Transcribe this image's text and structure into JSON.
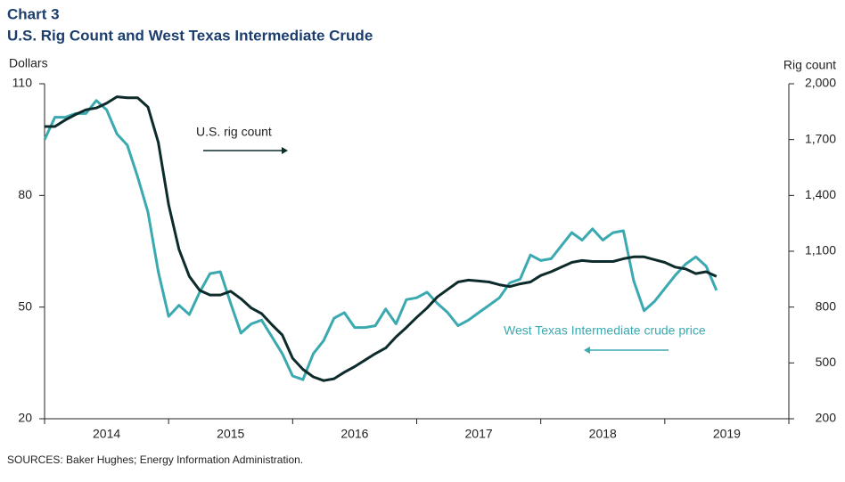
{
  "chart_data": {
    "type": "line",
    "title": "Chart 3",
    "subtitle": "U.S. Rig Count and West Texas Intermediate Crude",
    "y_label": "Dollars",
    "y2_label": "Rig count",
    "source": "SOURCES: Baker Hughes; Energy Information  Administration.",
    "categories": [
      "2014",
      null,
      null,
      null,
      null,
      null,
      null,
      null,
      null,
      null,
      null,
      null,
      "2015",
      null,
      null,
      null,
      null,
      null,
      null,
      null,
      null,
      null,
      null,
      null,
      "2016",
      null,
      null,
      null,
      null,
      null,
      null,
      null,
      null,
      null,
      null,
      null,
      "2017",
      null,
      null,
      null,
      null,
      null,
      null,
      null,
      null,
      null,
      null,
      null,
      "2018",
      null,
      null,
      null,
      null,
      null,
      null,
      null,
      null,
      null,
      null,
      null,
      "2019",
      null,
      null,
      null,
      null,
      null
    ],
    "ylim": [
      20,
      110
    ],
    "yticks": [
      20,
      50,
      80,
      110
    ],
    "y2lim": [
      200,
      2000
    ],
    "y2ticks": [
      200,
      500,
      800,
      {
        "value": 1100,
        "label": "1,100"
      },
      {
        "value": 1400,
        "label": "1,400"
      },
      {
        "value": 1700,
        "label": "1,700"
      },
      {
        "value": 2000,
        "label": "2,000"
      }
    ],
    "series": [
      {
        "name": "West Texas Intermediate crude price",
        "color": "#3aa9b0",
        "values": [
          95,
          101,
          101,
          102,
          102,
          105.5,
          103,
          96.5,
          93.5,
          85,
          75.5,
          59.5,
          47.5,
          50.5,
          48,
          54,
          59,
          59.5,
          51,
          43,
          45.5,
          46.5,
          42,
          37.5,
          31.5,
          30.5,
          37.5,
          41,
          47,
          48.5,
          44.5,
          44.5,
          45,
          49.5,
          45.5,
          52,
          52.5,
          54,
          51,
          48.5,
          45,
          46.5,
          48.5,
          50.5,
          52.5,
          56.5,
          57.5,
          64,
          62.5,
          63,
          66.5,
          70,
          68,
          71,
          68,
          70,
          70.5,
          57,
          49,
          51.5,
          55,
          58.5,
          61.5,
          63.5,
          61,
          54.5
        ]
      },
      {
        "name": "U.S. rig count",
        "color": "#0e2b2b",
        "axis": "y2",
        "values": [
          1770,
          1770,
          1805,
          1835,
          1860,
          1870,
          1895,
          1930,
          1925,
          1925,
          1875,
          1685,
          1350,
          1110,
          965,
          890,
          865,
          865,
          885,
          845,
          795,
          765,
          705,
          650,
          525,
          465,
          425,
          405,
          415,
          450,
          480,
          515,
          550,
          580,
          640,
          690,
          745,
          795,
          855,
          895,
          935,
          945,
          940,
          935,
          920,
          910,
          925,
          935,
          970,
          990,
          1015,
          1040,
          1050,
          1045,
          1045,
          1045,
          1060,
          1070,
          1070,
          1055,
          1040,
          1015,
          1005,
          980,
          990,
          965
        ]
      }
    ]
  }
}
